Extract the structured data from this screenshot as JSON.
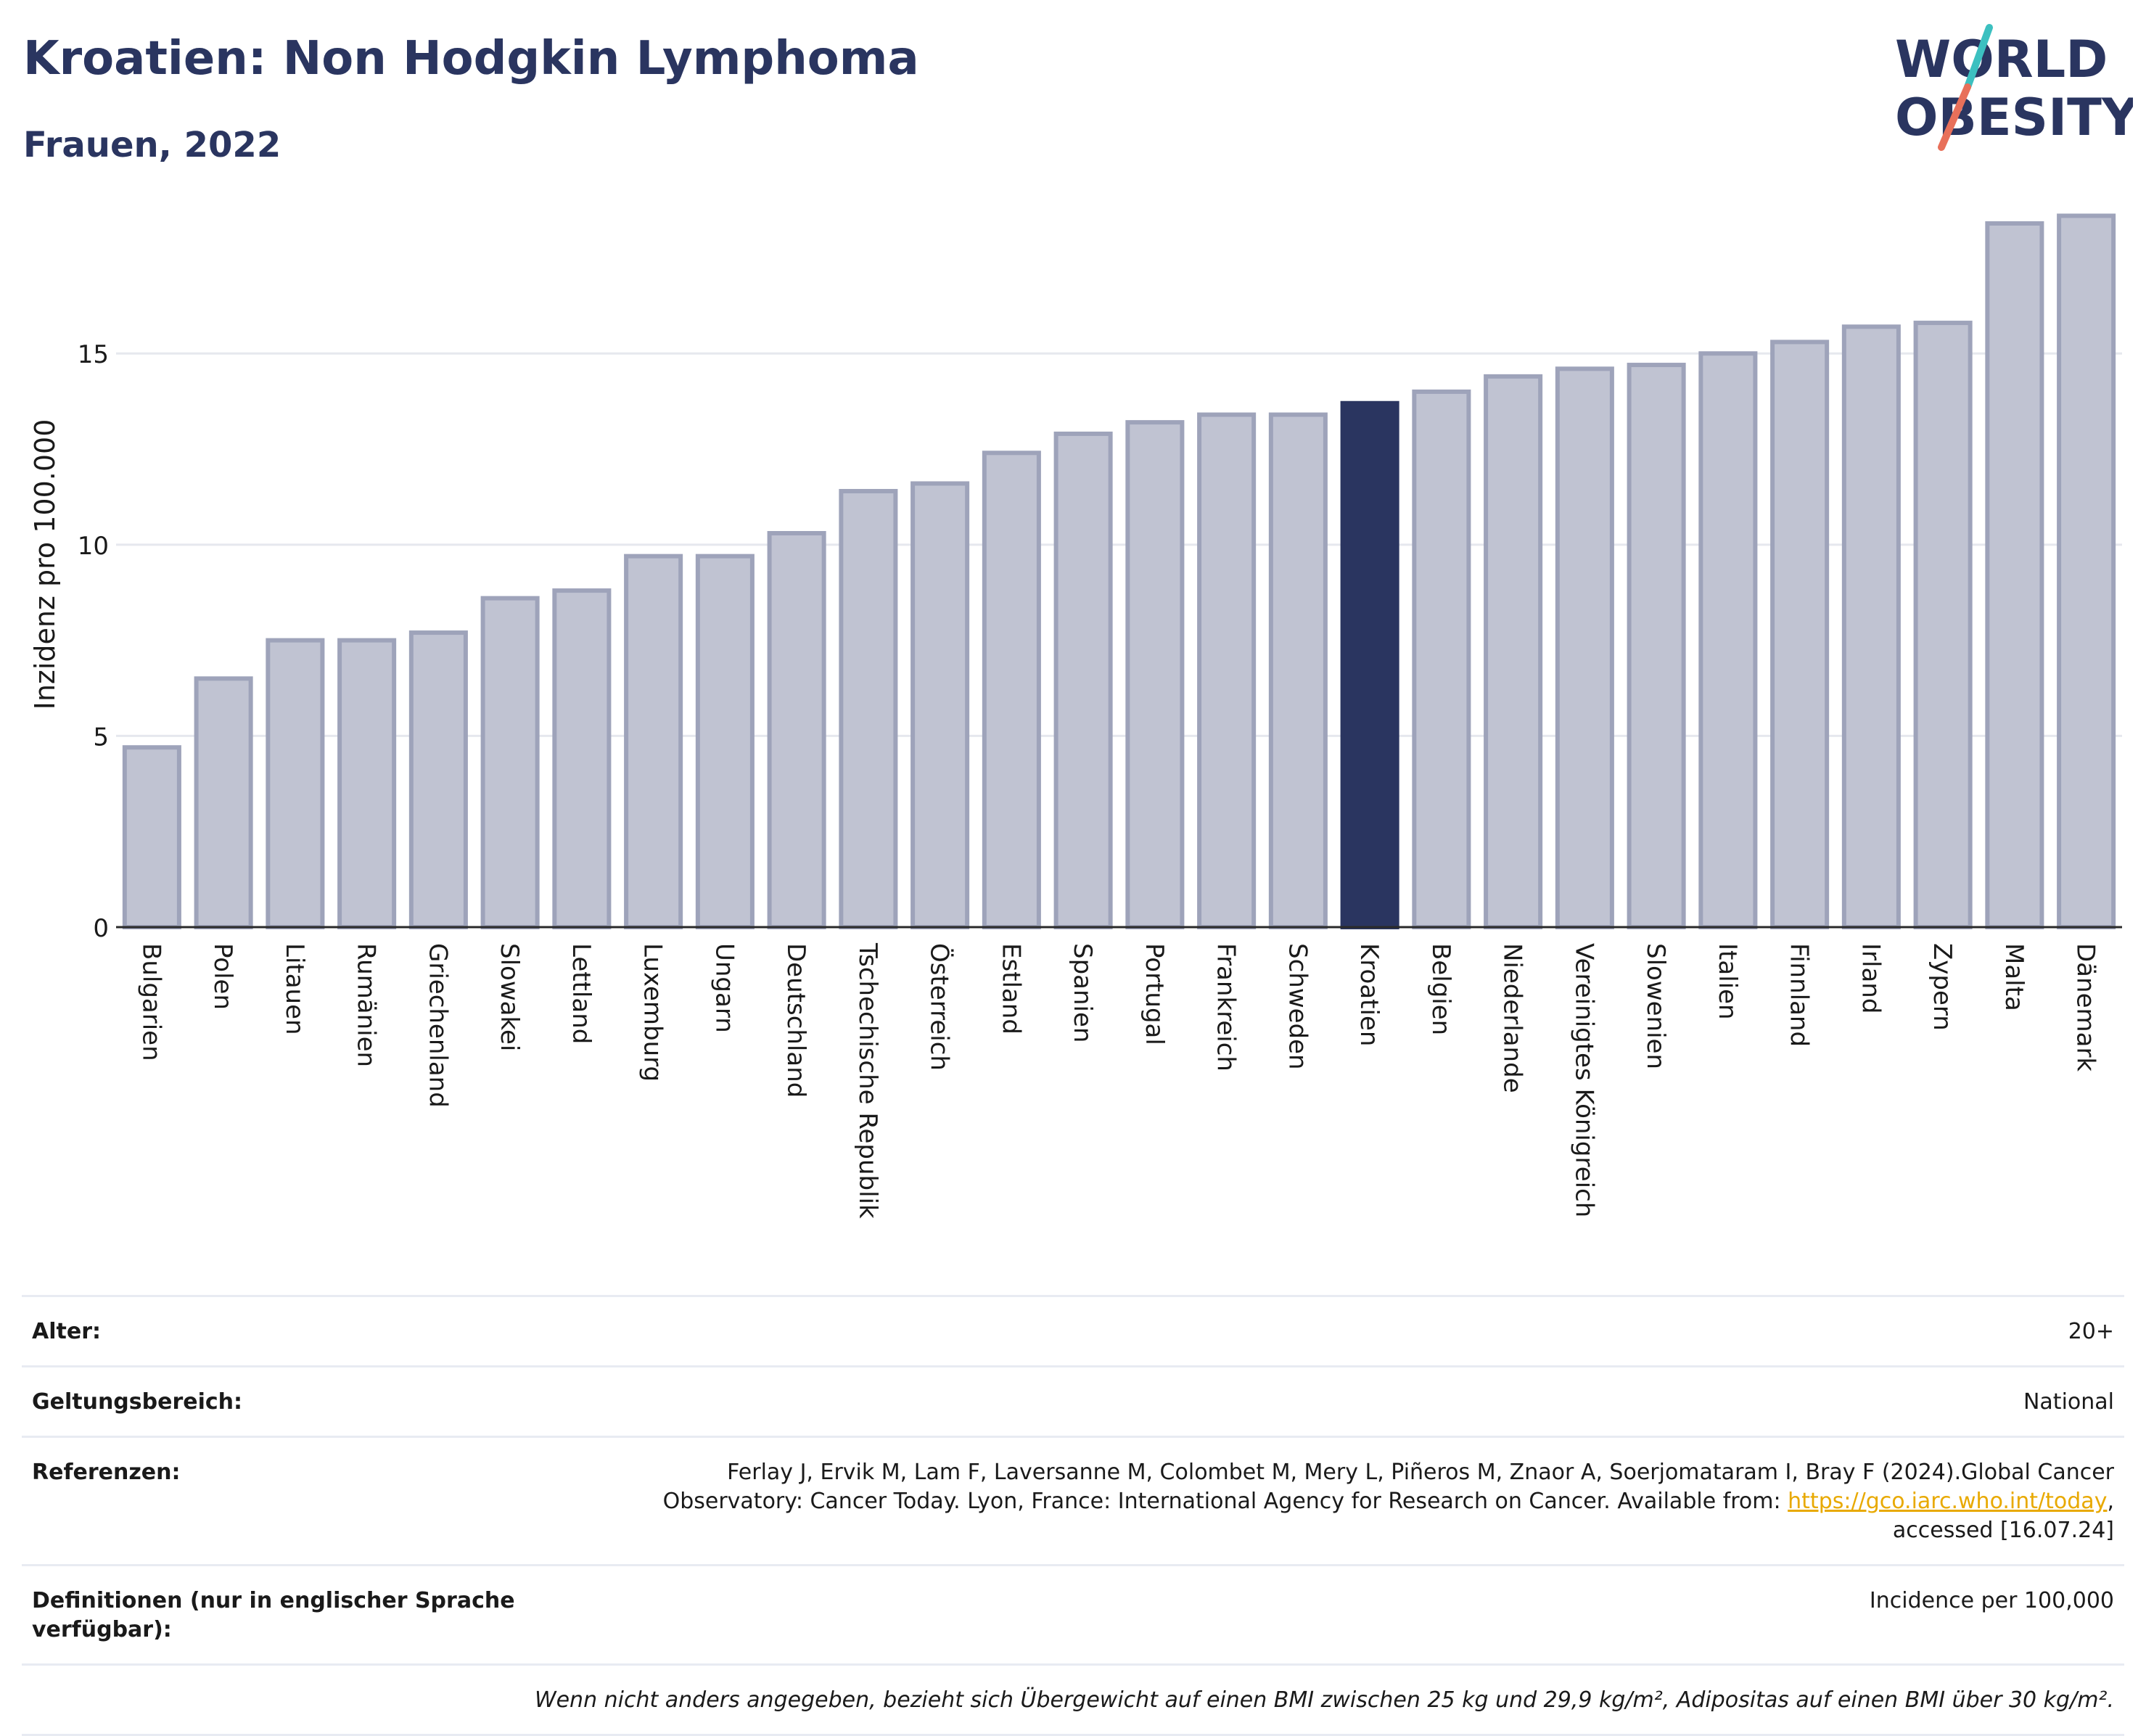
{
  "header": {
    "title": "Kroatien: Non Hodgkin Lymphoma",
    "subtitle": "Frauen, 2022"
  },
  "logo": {
    "line1": "WORLD",
    "line2": "OBESITY",
    "colors": {
      "text": "#2a3560",
      "slash_top": "#3cc0c0",
      "slash_bottom": "#e8705a"
    }
  },
  "chart_data": {
    "type": "bar",
    "ylabel": "Inzidenz pro 100.000",
    "ylim": [
      0,
      19.5
    ],
    "yticks": [
      0,
      5,
      10,
      15
    ],
    "grid": true,
    "highlight": "Kroatien",
    "colors": {
      "bar": "#c0c3d2",
      "bar_border": "#9ea3ba",
      "highlight": "#2a3560",
      "grid": "#e6e8ee"
    },
    "categories": [
      "Bulgarien",
      "Polen",
      "Litauen",
      "Rumänien",
      "Griechenland",
      "Slowakei",
      "Lettland",
      "Luxemburg",
      "Ungarn",
      "Deutschland",
      "Tschechische Republik",
      "Österreich",
      "Estland",
      "Spanien",
      "Portugal",
      "Frankreich",
      "Schweden",
      "Kroatien",
      "Belgien",
      "Niederlande",
      "Vereinigtes Königreich",
      "Slowenien",
      "Italien",
      "Finnland",
      "Irland",
      "Zypern",
      "Malta",
      "Dänemark"
    ],
    "values": [
      4.7,
      6.5,
      7.5,
      7.5,
      7.7,
      8.6,
      8.8,
      9.7,
      9.7,
      10.3,
      11.4,
      11.6,
      12.4,
      12.9,
      13.2,
      13.4,
      13.4,
      13.7,
      14.0,
      14.4,
      14.6,
      14.7,
      15.0,
      15.3,
      15.7,
      15.8,
      18.4,
      18.6
    ]
  },
  "meta": {
    "age_label": "Alter:",
    "age_value": "20+",
    "scope_label": "Geltungsbereich:",
    "scope_value": "National",
    "ref_label": "Referenzen:",
    "ref_text_1": "Ferlay J, Ervik M, Lam F, Laversanne M, Colombet M, Mery L, Piñeros M, Znaor A, Soerjomataram I, Bray F (2024).Global Cancer",
    "ref_text_2": "Observatory: Cancer Today. Lyon, France: International Agency for Research on Cancer. Available from: ",
    "ref_link": "https://gco.iarc.who.int/today",
    "ref_text_3": "accessed [16.07.24]",
    "def_label": "Definitionen (nur in englischer Sprache verfügbar):",
    "def_value": "Incidence per 100,000",
    "note": "Wenn nicht anders angegeben, bezieht sich Übergewicht auf einen BMI zwischen 25 kg und 29,9 kg/m², Adipositas auf einen BMI über 30 kg/m²."
  }
}
